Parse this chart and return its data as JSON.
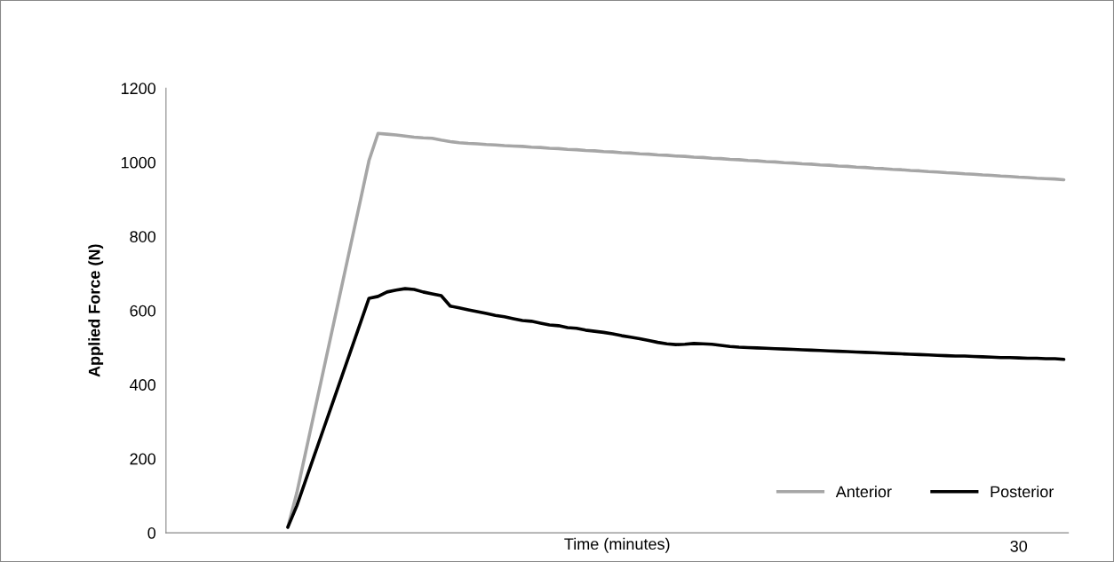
{
  "chart_data": {
    "type": "line",
    "xlabel": "Time (minutes)",
    "ylabel": "Applied Force (N)",
    "categories": [
      null,
      null,
      null,
      null,
      null,
      null,
      null,
      null,
      null,
      null,
      null,
      null,
      null,
      null,
      null,
      null,
      null,
      null,
      null,
      null,
      null,
      null,
      null,
      null,
      null,
      null,
      null,
      null,
      null,
      null,
      null,
      null,
      null,
      null,
      null,
      null,
      null,
      null,
      null,
      null,
      null,
      null,
      null,
      null,
      null,
      null,
      null,
      null,
      null,
      null,
      null,
      null,
      null,
      null,
      null,
      null,
      null,
      null,
      null,
      null,
      null,
      null,
      null,
      null,
      null,
      null,
      null,
      null,
      null,
      null,
      null,
      null,
      null,
      null,
      null,
      null,
      null,
      null,
      null,
      null,
      null,
      null,
      null,
      null,
      null,
      null,
      null,
      null,
      null,
      null,
      null,
      null,
      null,
      null,
      "30",
      null,
      null,
      null,
      null,
      null
    ],
    "series": [
      {
        "name": "Anterior",
        "color": "#a6a6a6",
        "values": [
          null,
          null,
          null,
          null,
          null,
          null,
          null,
          null,
          null,
          null,
          null,
          null,
          null,
          15,
          108,
          220,
          332,
          444,
          556,
          668,
          780,
          892,
          1005,
          1078,
          1076,
          1074,
          1071,
          1068,
          1066,
          1065,
          1060,
          1056,
          1053,
          1051,
          1050,
          1048,
          1047,
          1045,
          1044,
          1043,
          1041,
          1040,
          1038,
          1037,
          1035,
          1034,
          1032,
          1031,
          1029,
          1028,
          1026,
          1025,
          1023,
          1022,
          1020,
          1019,
          1017,
          1016,
          1014,
          1013,
          1011,
          1010,
          1008,
          1007,
          1005,
          1004,
          1002,
          1001,
          999,
          998,
          996,
          995,
          993,
          992,
          990,
          989,
          987,
          986,
          984,
          983,
          981,
          980,
          978,
          977,
          975,
          974,
          972,
          971,
          969,
          968,
          966,
          965,
          963,
          962,
          960,
          959,
          957,
          956,
          955,
          953
        ]
      },
      {
        "name": "Posterior",
        "color": "#000000",
        "values": [
          null,
          null,
          null,
          null,
          null,
          null,
          null,
          null,
          null,
          null,
          null,
          null,
          null,
          15,
          73,
          143,
          213,
          283,
          353,
          423,
          493,
          563,
          633,
          638,
          650,
          655,
          659,
          657,
          650,
          645,
          640,
          612,
          607,
          602,
          597,
          592,
          587,
          583,
          578,
          573,
          571,
          566,
          561,
          559,
          554,
          552,
          547,
          544,
          541,
          537,
          532,
          528,
          524,
          519,
          514,
          510,
          508,
          509,
          511,
          510,
          509,
          506,
          503,
          501,
          500,
          499,
          498,
          497,
          496,
          495,
          494,
          493,
          492,
          491,
          490,
          489,
          488,
          487,
          486,
          485,
          484,
          483,
          482,
          481,
          480,
          479,
          478,
          477,
          477,
          476,
          475,
          474,
          473,
          473,
          472,
          471,
          471,
          470,
          470,
          468
        ]
      }
    ],
    "ylim": [
      0,
      1200
    ],
    "yticks": [
      0,
      200,
      400,
      600,
      800,
      1000,
      1200
    ],
    "grid": false,
    "legend": "bottom right",
    "marker": "none",
    "line_style": "solid"
  }
}
